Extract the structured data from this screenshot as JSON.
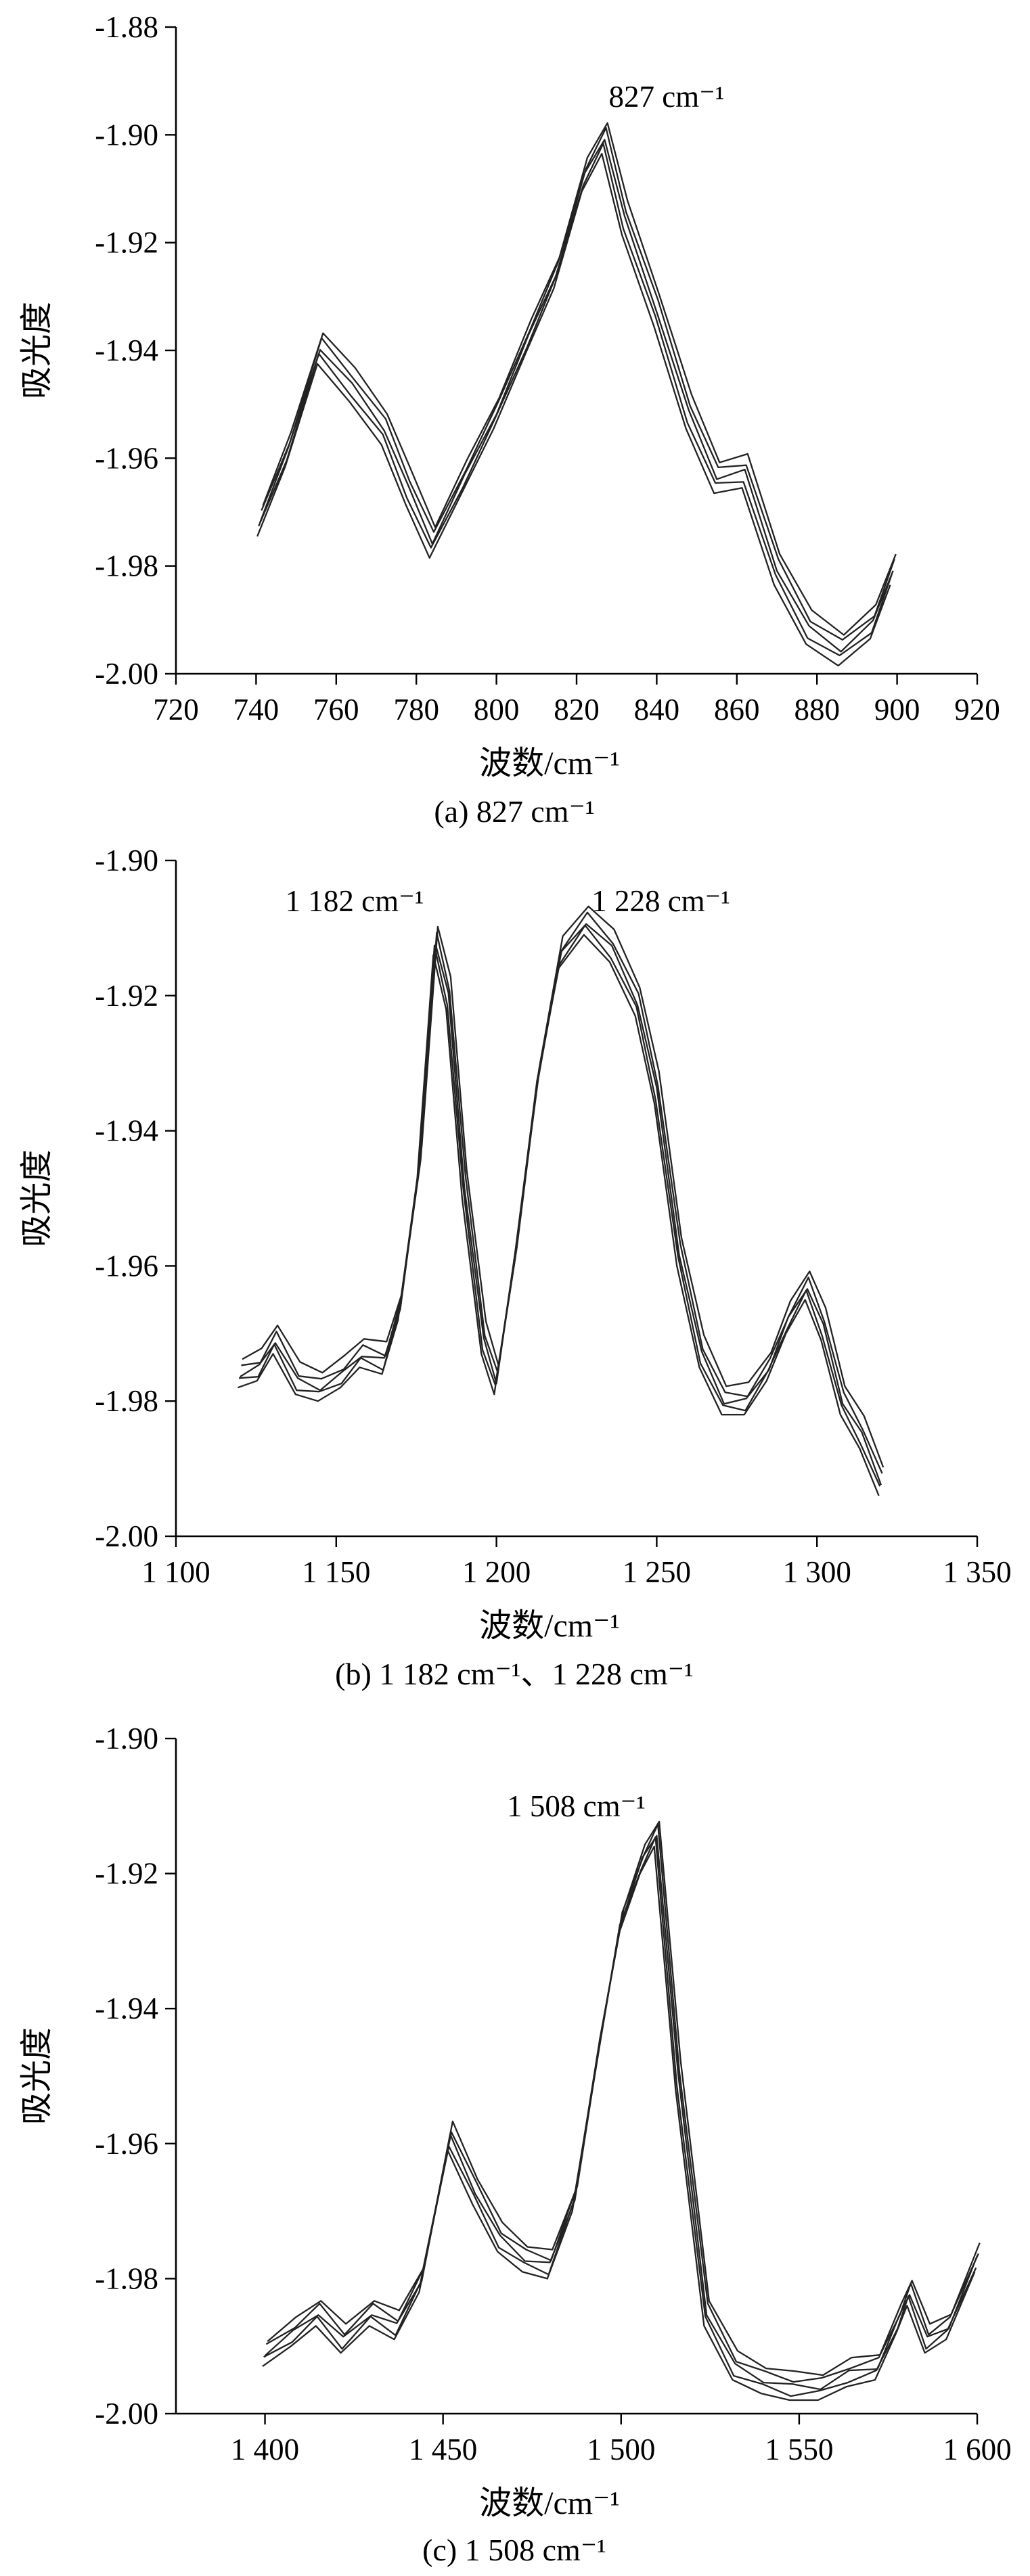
{
  "chart_data": [
    {
      "type": "line",
      "caption": "(a) 827 cm⁻¹",
      "xlabel": "波数/cm⁻¹",
      "ylabel": "吸光度",
      "xlim": [
        720,
        920
      ],
      "ylim": [
        -2.0,
        -1.88
      ],
      "xticks": [
        "720",
        "740",
        "760",
        "780",
        "800",
        "820",
        "840",
        "860",
        "880",
        "900",
        "920"
      ],
      "yticks": [
        "-1.88",
        "-1.90",
        "-1.92",
        "-1.94",
        "-1.96",
        "-1.98",
        "-2.00"
      ],
      "annotations": [
        {
          "text": "827 cm⁻¹",
          "x": 827,
          "y": -1.8963
        }
      ],
      "base_series": {
        "x": [
          741,
          748,
          756,
          764,
          772,
          778,
          784,
          792,
          800,
          808,
          815,
          822,
          827,
          832,
          840,
          848,
          855,
          862,
          870,
          878,
          886,
          894,
          899
        ],
        "y": [
          -1.971,
          -1.958,
          -1.939,
          -1.946,
          -1.954,
          -1.965,
          -1.975,
          -1.963,
          -1.951,
          -1.937,
          -1.925,
          -1.907,
          -1.9,
          -1.915,
          -1.932,
          -1.951,
          -1.963,
          -1.962,
          -1.98,
          -1.991,
          -1.995,
          -1.99,
          -1.98
        ]
      },
      "series": [
        {
          "offset": -0.0035,
          "jitter": 0.0
        },
        {
          "offset": -0.002,
          "jitter": 0.0004
        },
        {
          "offset": -0.0005,
          "jitter": -0.0004
        },
        {
          "offset": 0.001,
          "jitter": 0.0003
        },
        {
          "offset": 0.0025,
          "jitter": -0.0003
        }
      ]
    },
    {
      "type": "line",
      "caption": "(b) 1 182 cm⁻¹、1 228 cm⁻¹",
      "xlabel": "波数/cm⁻¹",
      "ylabel": "吸光度",
      "xlim": [
        1100,
        1350
      ],
      "ylim": [
        -2.0,
        -1.9
      ],
      "xticks": [
        "1 100",
        "1 150",
        "1 200",
        "1 250",
        "1 300",
        "1 350"
      ],
      "yticks": [
        "-1.90",
        "-1.92",
        "-1.94",
        "-1.96",
        "-1.98",
        "-2.00"
      ],
      "annotations": [
        {
          "text": "1 182 cm⁻¹",
          "x": 1182,
          "y": -1.9085
        },
        {
          "text": "1 228 cm⁻¹",
          "x": 1228,
          "y": -1.9085
        }
      ],
      "base_series": {
        "x": [
          1120,
          1126,
          1131,
          1138,
          1145,
          1152,
          1158,
          1165,
          1170,
          1176,
          1181,
          1185,
          1190,
          1196,
          1200,
          1206,
          1213,
          1220,
          1228,
          1236,
          1244,
          1250,
          1257,
          1264,
          1271,
          1278,
          1285,
          1291,
          1297,
          1302,
          1308,
          1314,
          1320
        ],
        "y": [
          -1.976,
          -1.975,
          -1.971,
          -1.977,
          -1.978,
          -1.976,
          -1.973,
          -1.974,
          -1.966,
          -1.945,
          -1.912,
          -1.92,
          -1.948,
          -1.971,
          -1.977,
          -1.958,
          -1.932,
          -1.914,
          -1.909,
          -1.913,
          -1.921,
          -1.934,
          -1.958,
          -1.973,
          -1.98,
          -1.98,
          -1.975,
          -1.968,
          -1.963,
          -1.969,
          -1.98,
          -1.985,
          -1.992
        ]
      },
      "series": [
        {
          "offset": -0.002,
          "jitter": 0.0
        },
        {
          "offset": -0.001,
          "jitter": 0.0004
        },
        {
          "offset": 0.0,
          "jitter": -0.0004
        },
        {
          "offset": 0.001,
          "jitter": 0.0003
        },
        {
          "offset": 0.0025,
          "jitter": -0.0003
        }
      ]
    },
    {
      "type": "line",
      "caption": "(c) 1 508 cm⁻¹",
      "xlabel": "波数/cm⁻¹",
      "ylabel": "吸光度",
      "xlim": [
        1375,
        1600
      ],
      "ylim": [
        -2.0,
        -1.9
      ],
      "xticks": [
        "1 400",
        "1 450",
        "1 500",
        "1 550",
        "1 600"
      ],
      "yticks": [
        "-1.90",
        "-1.92",
        "-1.94",
        "-1.96",
        "-1.98",
        "-2.00"
      ],
      "annotations": [
        {
          "text": "1 508 cm⁻¹",
          "x": 1508,
          "y": -1.9125
        }
      ],
      "base_series": {
        "x": [
          1400,
          1408,
          1415,
          1422,
          1430,
          1437,
          1444,
          1452,
          1459,
          1466,
          1473,
          1480,
          1487,
          1494,
          1500,
          1506,
          1510,
          1516,
          1524,
          1532,
          1540,
          1548,
          1556,
          1564,
          1572,
          1578,
          1581,
          1586,
          1592,
          1600
        ],
        "y": [
          -1.991,
          -1.988,
          -1.985,
          -1.989,
          -1.985,
          -1.987,
          -1.98,
          -1.959,
          -1.967,
          -1.974,
          -1.977,
          -1.978,
          -1.968,
          -1.945,
          -1.927,
          -1.918,
          -1.914,
          -1.95,
          -1.985,
          -1.993,
          -1.995,
          -1.996,
          -1.996,
          -1.994,
          -1.993,
          -1.986,
          -1.982,
          -1.989,
          -1.987,
          -1.977
        ]
      },
      "series": [
        {
          "offset": -0.002,
          "jitter": 0.0
        },
        {
          "offset": -0.001,
          "jitter": 0.0004
        },
        {
          "offset": 0.0,
          "jitter": -0.0004
        },
        {
          "offset": 0.001,
          "jitter": 0.0003
        },
        {
          "offset": 0.002,
          "jitter": -0.0003
        }
      ]
    }
  ]
}
